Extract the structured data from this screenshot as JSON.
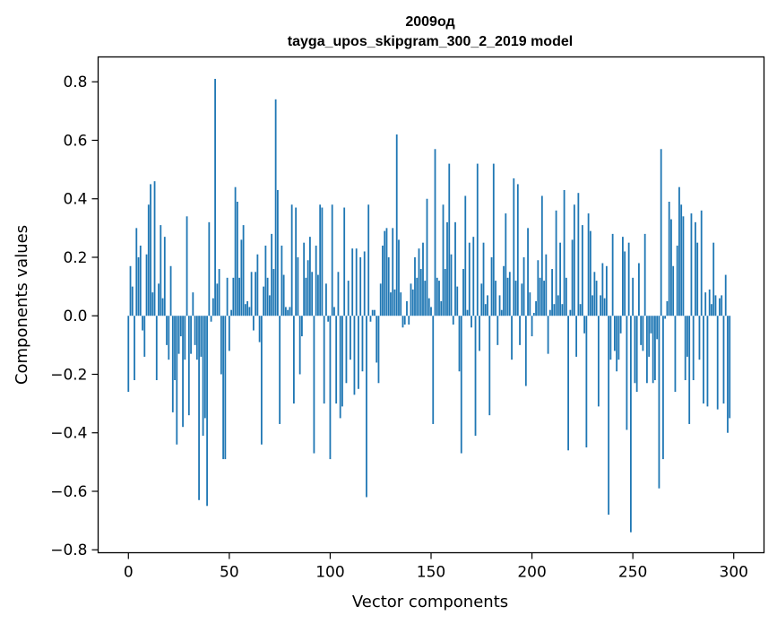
{
  "chart_data": {
    "type": "bar",
    "title": "2009од",
    "subtitle": "tayga_upos_skipgram_300_2_2019 model",
    "xlabel": "Vector components",
    "ylabel": "Components values",
    "xlim": [
      -15,
      315
    ],
    "ylim": [
      -0.81,
      0.885
    ],
    "xticks": [
      0,
      50,
      100,
      150,
      200,
      250,
      300
    ],
    "yticks": [
      -0.8,
      -0.6,
      -0.4,
      -0.2,
      0.0,
      0.2,
      0.4,
      0.6,
      0.8
    ],
    "ytick_labels": [
      "−0.8",
      "−0.6",
      "−0.4",
      "−0.2",
      "0.0",
      "0.2",
      "0.4",
      "0.6",
      "0.8"
    ],
    "bar_color": "#1f77b4",
    "grid": false,
    "values": [
      -0.26,
      0.17,
      0.1,
      -0.22,
      0.3,
      0.2,
      0.24,
      -0.05,
      -0.14,
      0.21,
      0.38,
      0.45,
      0.08,
      0.46,
      -0.22,
      0.11,
      0.31,
      0.06,
      0.27,
      -0.1,
      -0.15,
      0.17,
      -0.33,
      -0.22,
      -0.44,
      -0.13,
      -0.07,
      -0.38,
      -0.15,
      0.34,
      -0.34,
      -0.13,
      0.08,
      -0.1,
      -0.15,
      -0.63,
      -0.14,
      -0.41,
      -0.35,
      -0.65,
      0.32,
      -0.02,
      0.06,
      0.81,
      0.11,
      0.16,
      -0.2,
      -0.49,
      -0.49,
      0.13,
      -0.12,
      0.02,
      0.13,
      0.44,
      0.39,
      0.13,
      0.26,
      0.31,
      0.04,
      0.05,
      0.03,
      0.15,
      -0.05,
      0.15,
      0.21,
      -0.09,
      -0.44,
      0.1,
      0.24,
      0.13,
      0.07,
      0.28,
      0.16,
      0.74,
      0.43,
      -0.37,
      0.24,
      0.14,
      0.03,
      0.02,
      0.03,
      0.38,
      -0.3,
      0.37,
      0.2,
      -0.2,
      -0.07,
      0.25,
      0.13,
      0.19,
      0.27,
      0.15,
      -0.47,
      0.24,
      0.14,
      0.38,
      0.37,
      -0.3,
      0.11,
      -0.02,
      -0.49,
      0.38,
      0.03,
      -0.3,
      0.15,
      -0.35,
      -0.31,
      0.37,
      -0.23,
      0.12,
      -0.15,
      0.23,
      -0.27,
      0.23,
      -0.25,
      0.2,
      -0.19,
      0.22,
      -0.62,
      0.38,
      -0.02,
      0.02,
      0.02,
      -0.16,
      -0.23,
      0.11,
      0.24,
      0.29,
      0.3,
      0.2,
      0.08,
      0.3,
      0.09,
      0.62,
      0.26,
      0.08,
      -0.04,
      -0.03,
      0.05,
      -0.03,
      0.11,
      0.09,
      0.2,
      0.13,
      0.23,
      0.16,
      0.25,
      0.12,
      0.4,
      0.06,
      0.03,
      -0.37,
      0.57,
      0.13,
      0.12,
      0.05,
      0.38,
      0.16,
      0.32,
      0.52,
      0.21,
      -0.03,
      0.32,
      0.1,
      -0.19,
      -0.47,
      0.16,
      0.41,
      0.02,
      0.25,
      -0.04,
      0.27,
      -0.41,
      0.52,
      -0.12,
      0.11,
      0.25,
      0.04,
      0.07,
      -0.34,
      0.2,
      0.52,
      0.12,
      -0.1,
      0.07,
      0.02,
      0.17,
      0.35,
      0.13,
      0.15,
      -0.15,
      0.47,
      0.12,
      0.45,
      -0.1,
      0.11,
      0.2,
      -0.24,
      0.3,
      0.08,
      -0.07,
      0.01,
      0.05,
      0.19,
      0.13,
      0.41,
      0.12,
      0.21,
      -0.13,
      0.02,
      0.16,
      0.04,
      0.36,
      0.07,
      0.25,
      0.04,
      0.43,
      0.13,
      -0.46,
      0.02,
      0.26,
      0.38,
      -0.14,
      0.42,
      0.04,
      0.31,
      -0.06,
      -0.45,
      0.35,
      0.29,
      0.07,
      0.15,
      0.12,
      -0.31,
      0.07,
      0.18,
      0.06,
      0.17,
      -0.68,
      -0.15,
      0.28,
      -0.12,
      -0.19,
      -0.15,
      -0.06,
      0.27,
      0.22,
      -0.39,
      0.25,
      -0.74,
      0.13,
      -0.23,
      -0.26,
      0.18,
      -0.1,
      -0.12,
      0.28,
      -0.23,
      -0.14,
      -0.06,
      -0.23,
      -0.22,
      -0.08,
      -0.59,
      0.57,
      -0.49,
      -0.01,
      0.05,
      0.39,
      0.33,
      0.17,
      -0.26,
      0.24,
      0.44,
      0.38,
      0.34,
      -0.22,
      -0.14,
      -0.37,
      0.35,
      -0.22,
      0.32,
      0.25,
      -0.15,
      0.36,
      -0.3,
      0.08,
      -0.31,
      0.09,
      0.04,
      0.25,
      0.07,
      -0.32,
      0.06,
      0.07,
      -0.3,
      0.14,
      -0.4,
      -0.35
    ]
  }
}
